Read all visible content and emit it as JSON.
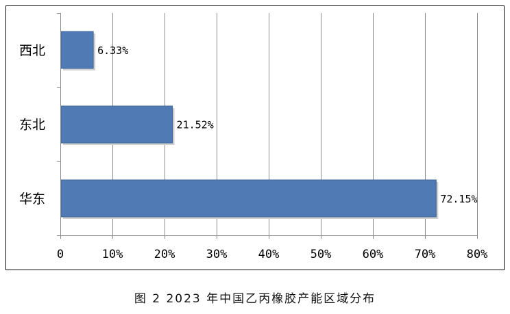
{
  "chart_data": {
    "type": "bar",
    "orientation": "horizontal",
    "categories": [
      "西北",
      "东北",
      "华东"
    ],
    "values": [
      6.33,
      21.52,
      72.15
    ],
    "data_labels": [
      "6.33%",
      "21.52%",
      "72.15%"
    ],
    "xlim": [
      0,
      80
    ],
    "x_ticks": [
      0,
      10,
      20,
      30,
      40,
      50,
      60,
      70,
      80
    ],
    "x_tick_labels": [
      "0",
      "10%",
      "20%",
      "30%",
      "40%",
      "50%",
      "60%",
      "70%",
      "80%"
    ],
    "grid": "vertical",
    "bar_color": "#4F7AB3",
    "legend": "none"
  },
  "caption": "图 2  2023 年中国乙丙橡胶产能区域分布"
}
